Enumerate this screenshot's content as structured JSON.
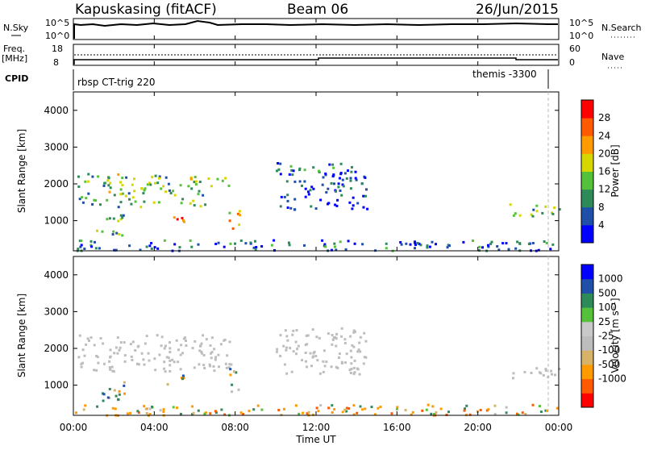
{
  "header": {
    "station": "Kapuskasing (fitACF)",
    "beam": "Beam 06",
    "date": "26/Jun/2015"
  },
  "aux_panels": {
    "nsky_label": "N.Sky",
    "nsky_ticks": [
      "10^5",
      "10^0"
    ],
    "nsearch_label": "N.Search",
    "nsearch_ticks": [
      "10^5",
      "10^0"
    ],
    "freq_label": "Freq.",
    "freq_unit": "[MHz]",
    "freq_ticks": [
      "18",
      "8"
    ],
    "nave_label": "Nave",
    "nave_ticks": [
      "60",
      "0"
    ],
    "cpid_label": "CPID",
    "cpid_left": "rbsp CT-trig 220",
    "cpid_right": "themis -3300"
  },
  "colors": {
    "power_scale": [
      "#0000ff",
      "#1f4fa8",
      "#2f8a5a",
      "#55c13a",
      "#d6d600",
      "#ff9b00",
      "#ff5a00",
      "#ff0000"
    ],
    "velocity_scale": [
      "#ff0000",
      "#ff5a00",
      "#ff9b00",
      "#d7b36a",
      "#bdbdbd",
      "#c8c8c8",
      "#55c13a",
      "#2f8a5a",
      "#1f4fa8",
      "#0000ff"
    ],
    "ground_scatter": "#bdbdbd"
  },
  "chart_data": [
    {
      "type": "heatmap",
      "title": "Power",
      "ylabel": "Slant Range [km]",
      "xlabel": "",
      "x_ticks": [
        "00:00",
        "04:00",
        "08:00",
        "12:00",
        "16:00",
        "20:00",
        "00:00"
      ],
      "x_range_hours": [
        0,
        24
      ],
      "y_ticks": [
        1000,
        2000,
        3000,
        4000
      ],
      "ylim": [
        180,
        4500
      ],
      "colorbar": {
        "label": "Power [dB]",
        "ticks": [
          "4",
          "8",
          "12",
          "16",
          "20",
          "24",
          "28"
        ],
        "range": [
          0,
          30
        ]
      },
      "regions": [
        {
          "t0": 0.2,
          "t1": 6.5,
          "r0": 1400,
          "r1": 2300,
          "level": 12
        },
        {
          "t0": 6.5,
          "t1": 7.8,
          "r0": 1900,
          "r1": 2200,
          "level": 12
        },
        {
          "t0": 4.5,
          "t1": 5.5,
          "r0": 1000,
          "r1": 1300,
          "level": 24
        },
        {
          "t0": 7.6,
          "t1": 8.2,
          "r0": 800,
          "r1": 1500,
          "level": 20
        },
        {
          "t0": 1.0,
          "t1": 2.5,
          "r0": 600,
          "r1": 1200,
          "level": 12
        },
        {
          "t0": 10.0,
          "t1": 14.5,
          "r0": 1300,
          "r1": 2600,
          "level": 6
        },
        {
          "t0": 21.5,
          "t1": 24.0,
          "r0": 1150,
          "r1": 1500,
          "level": 14
        },
        {
          "t0": 0.0,
          "t1": 24.0,
          "r0": 200,
          "r1": 500,
          "level": 6
        }
      ]
    },
    {
      "type": "heatmap",
      "title": "Velocity",
      "ylabel": "Slant Range [km]",
      "xlabel": "Time UT",
      "x_ticks": [
        "00:00",
        "04:00",
        "08:00",
        "12:00",
        "16:00",
        "20:00",
        "00:00"
      ],
      "x_range_hours": [
        0,
        24
      ],
      "y_ticks": [
        1000,
        2000,
        3000,
        4000
      ],
      "ylim": [
        180,
        4500
      ],
      "colorbar": {
        "label": "Velocity [m s⁻¹]",
        "ticks": [
          "1000",
          "500",
          "100",
          "25",
          "-25",
          "-100",
          "-500",
          "-1000"
        ]
      },
      "regions": [
        {
          "t0": 0.2,
          "t1": 7.8,
          "r0": 1400,
          "r1": 2400,
          "level": 0
        },
        {
          "t0": 4.5,
          "t1": 5.5,
          "r0": 1000,
          "r1": 1300,
          "level": 200
        },
        {
          "t0": 7.6,
          "t1": 8.2,
          "r0": 800,
          "r1": 1500,
          "level": 200
        },
        {
          "t0": 1.0,
          "t1": 2.5,
          "r0": 600,
          "r1": 1200,
          "level": 200
        },
        {
          "t0": 10.0,
          "t1": 14.5,
          "r0": 1300,
          "r1": 2600,
          "level": 0
        },
        {
          "t0": 21.5,
          "t1": 24.0,
          "r0": 1150,
          "r1": 1500,
          "level": 0
        },
        {
          "t0": 0.0,
          "t1": 24.0,
          "r0": 200,
          "r1": 500,
          "level": -200
        }
      ]
    }
  ]
}
